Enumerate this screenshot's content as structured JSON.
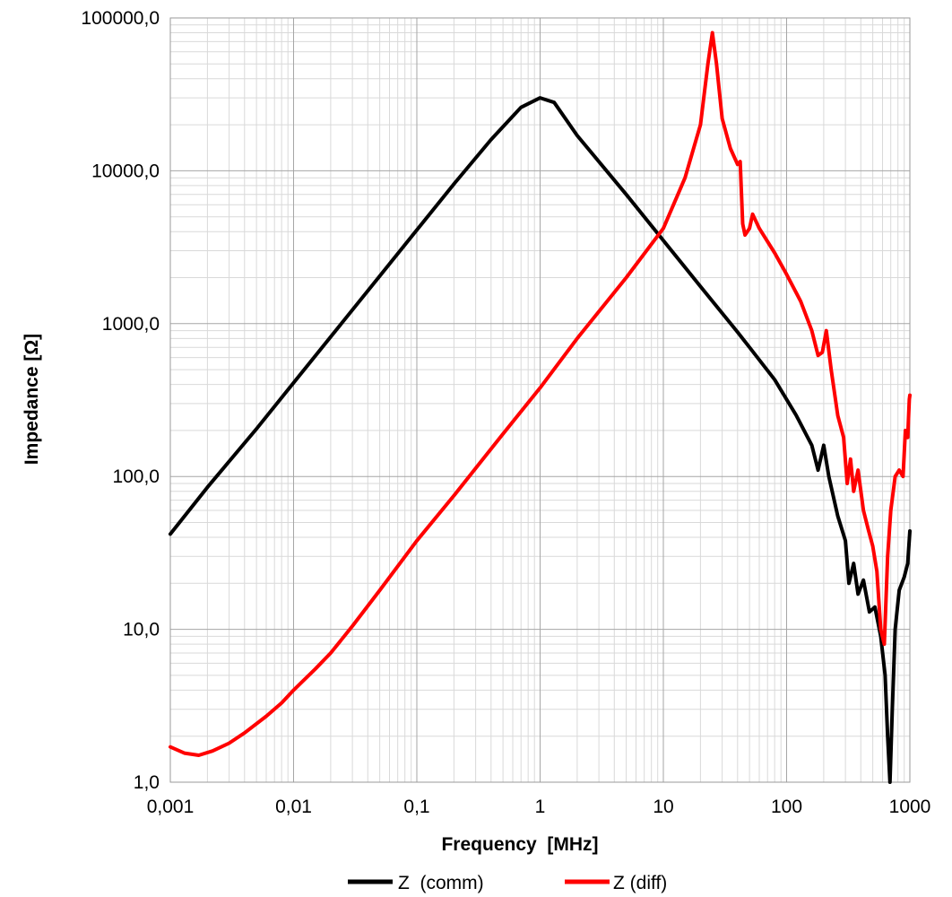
{
  "chart_data": {
    "type": "line",
    "title": "",
    "xlabel": "Frequency  [MHz]",
    "ylabel": "Impedance [Ω]",
    "xscale": "log",
    "yscale": "log",
    "xlim": [
      0.001,
      1000
    ],
    "ylim": [
      1,
      100000
    ],
    "grid": true,
    "legend_position": "bottom",
    "x_tick_labels": [
      "0,001",
      "0,01",
      "0,1",
      "1",
      "10",
      "100",
      "1000"
    ],
    "y_tick_labels": [
      "1,0",
      "10,0",
      "100,0",
      "1000,0",
      "10000,0",
      "100000,0"
    ],
    "series": [
      {
        "name": "Z  (comm)",
        "color": "#000000",
        "x": [
          0.001,
          0.002,
          0.005,
          0.01,
          0.02,
          0.05,
          0.1,
          0.2,
          0.4,
          0.7,
          1.0,
          1.3,
          2,
          5,
          10,
          20,
          40,
          50,
          80,
          120,
          160,
          180,
          200,
          220,
          260,
          300,
          320,
          350,
          380,
          420,
          470,
          520,
          580,
          630,
          660,
          690,
          720,
          760,
          820,
          900,
          960,
          1000
        ],
        "values": [
          42,
          85,
          205,
          410,
          820,
          2050,
          4100,
          8200,
          16000,
          26000,
          30000,
          28000,
          17000,
          7000,
          3500,
          1750,
          880,
          700,
          430,
          250,
          160,
          110,
          160,
          100,
          55,
          38,
          20,
          27,
          17,
          21,
          13,
          14,
          9,
          5,
          2,
          1,
          3,
          10,
          18,
          22,
          27,
          44
        ]
      },
      {
        "name": "Z (diff)",
        "color": "#ff0000",
        "x": [
          0.001,
          0.0013,
          0.0017,
          0.0022,
          0.003,
          0.004,
          0.006,
          0.008,
          0.01,
          0.015,
          0.02,
          0.03,
          0.05,
          0.1,
          0.2,
          0.5,
          1,
          2,
          5,
          10,
          15,
          20,
          23,
          25,
          27,
          30,
          35,
          40,
          42,
          44,
          46,
          50,
          53,
          60,
          80,
          100,
          130,
          160,
          180,
          195,
          210,
          230,
          260,
          290,
          310,
          330,
          350,
          380,
          420,
          460,
          500,
          540,
          580,
          620,
          660,
          700,
          760,
          820,
          880,
          920,
          960,
          990,
          1000
        ],
        "values": [
          1.7,
          1.55,
          1.5,
          1.6,
          1.8,
          2.1,
          2.7,
          3.3,
          4.0,
          5.5,
          7.0,
          10.5,
          18,
          38,
          75,
          190,
          380,
          800,
          2000,
          4200,
          9000,
          20000,
          50000,
          80000,
          50000,
          22000,
          14000,
          11000,
          11500,
          4500,
          3800,
          4200,
          5200,
          4200,
          2900,
          2100,
          1400,
          900,
          620,
          650,
          900,
          500,
          250,
          180,
          90,
          130,
          80,
          110,
          60,
          45,
          35,
          24,
          10,
          8,
          30,
          60,
          100,
          110,
          100,
          200,
          180,
          320,
          340
        ]
      }
    ]
  }
}
